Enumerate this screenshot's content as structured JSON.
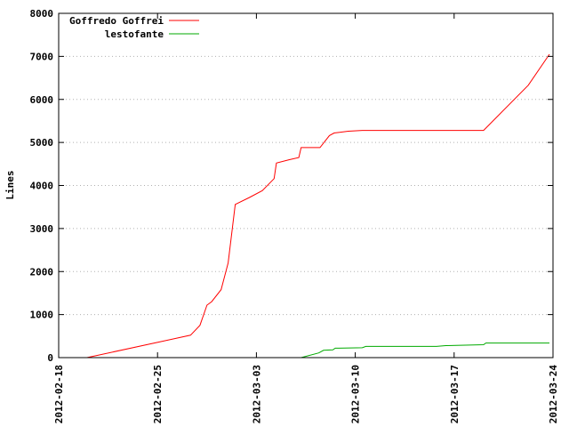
{
  "chart_data": {
    "type": "line",
    "title": "",
    "xlabel": "",
    "ylabel": "Lines",
    "ylim": [
      0,
      8000
    ],
    "xlim": [
      "2012-02-18",
      "2012-03-24"
    ],
    "y_ticks": [
      0,
      1000,
      2000,
      3000,
      4000,
      5000,
      6000,
      7000,
      8000
    ],
    "x_ticks": [
      "2012-02-18",
      "2012-02-25",
      "2012-03-03",
      "2012-03-10",
      "2012-03-17",
      "2012-03-24"
    ],
    "grid": "horizontal dotted",
    "legend_position": "top-left",
    "series": [
      {
        "name": "Goffredo Goffrei",
        "color": "#ff0000",
        "points": [
          [
            "2012-02-20 00:00",
            0
          ],
          [
            "2012-02-27 08:00",
            520
          ],
          [
            "2012-02-28 00:00",
            750
          ],
          [
            "2012-02-28 12:00",
            1220
          ],
          [
            "2012-02-28 20:00",
            1300
          ],
          [
            "2012-02-29 12:00",
            1580
          ],
          [
            "2012-03-01 00:00",
            2200
          ],
          [
            "2012-03-01 12:00",
            3560
          ],
          [
            "2012-03-02 12:00",
            3720
          ],
          [
            "2012-03-03 10:00",
            3880
          ],
          [
            "2012-03-04 06:00",
            4160
          ],
          [
            "2012-03-04 10:00",
            4520
          ],
          [
            "2012-03-05 08:00",
            4600
          ],
          [
            "2012-03-06 00:00",
            4650
          ],
          [
            "2012-03-06 04:00",
            4880
          ],
          [
            "2012-03-07 12:00",
            4880
          ],
          [
            "2012-03-08 04:00",
            5160
          ],
          [
            "2012-03-08 12:00",
            5220
          ],
          [
            "2012-03-09 12:00",
            5260
          ],
          [
            "2012-03-10 12:00",
            5280
          ],
          [
            "2012-03-19 02:00",
            5280
          ],
          [
            "2012-03-22 06:00",
            6330
          ],
          [
            "2012-03-23 18:00",
            7050
          ]
        ]
      },
      {
        "name": "lestofante",
        "color": "#00aa00",
        "points": [
          [
            "2012-03-06 04:00",
            0
          ],
          [
            "2012-03-07 10:00",
            110
          ],
          [
            "2012-03-07 18:00",
            170
          ],
          [
            "2012-03-08 10:00",
            180
          ],
          [
            "2012-03-08 14:00",
            220
          ],
          [
            "2012-03-10 12:00",
            230
          ],
          [
            "2012-03-10 18:00",
            260
          ],
          [
            "2012-03-15 18:00",
            260
          ],
          [
            "2012-03-16 10:00",
            280
          ],
          [
            "2012-03-19 02:00",
            300
          ],
          [
            "2012-03-19 06:00",
            340
          ],
          [
            "2012-03-23 18:00",
            340
          ]
        ]
      }
    ]
  }
}
